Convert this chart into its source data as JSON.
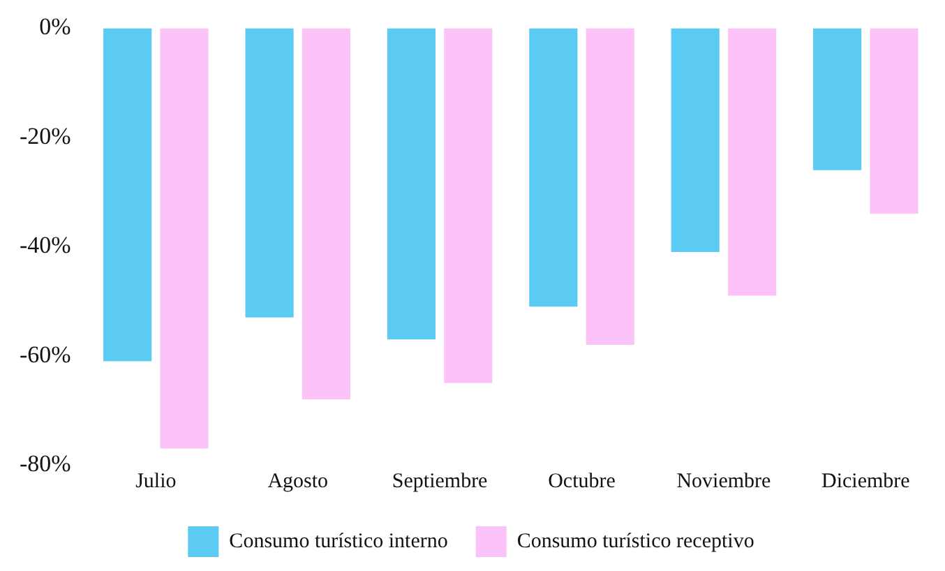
{
  "chart_data": {
    "type": "bar",
    "categories": [
      "Julio",
      "Agosto",
      "Septiembre",
      "Octubre",
      "Noviembre",
      "Diciembre"
    ],
    "series": [
      {
        "name": "Consumo turístico interno",
        "color": "#5ccbf3",
        "values": [
          -61,
          -53,
          -57,
          -51,
          -41,
          -26
        ]
      },
      {
        "name": "Consumo turístico receptivo",
        "color": "#fbc3f7",
        "values": [
          -77,
          -68,
          -65,
          -58,
          -49,
          -34
        ]
      }
    ],
    "ylim": [
      -80,
      0
    ],
    "yticks": [
      {
        "value": 0,
        "label": "0%"
      },
      {
        "value": -20,
        "label": "-20%"
      },
      {
        "value": -40,
        "label": "-40%"
      },
      {
        "value": -60,
        "label": "-60%"
      },
      {
        "value": -80,
        "label": "-80%"
      }
    ],
    "grid": false,
    "legend": "bottom"
  }
}
